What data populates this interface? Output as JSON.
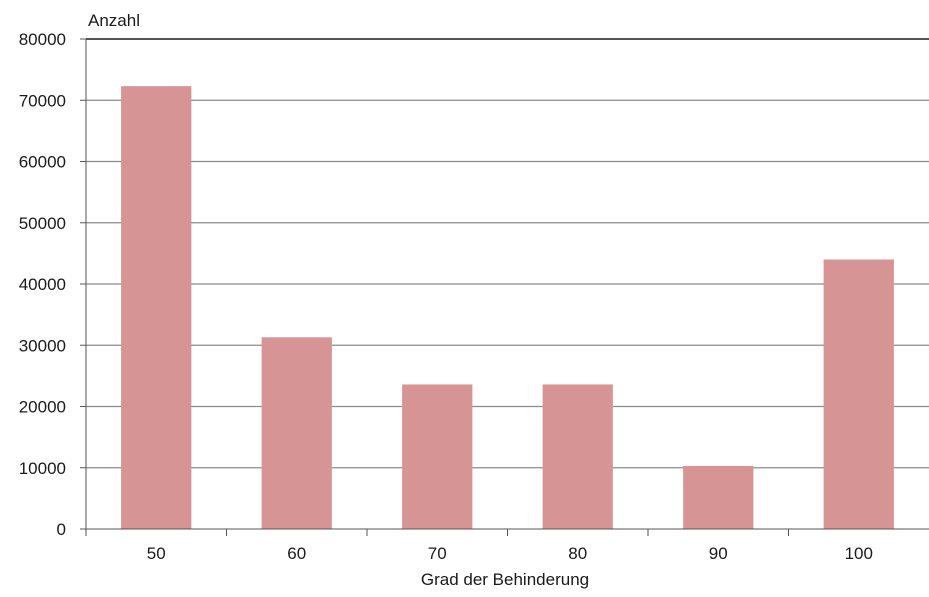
{
  "chart_data": {
    "type": "bar",
    "categories": [
      "50",
      "60",
      "70",
      "80",
      "90",
      "100"
    ],
    "values": [
      72300,
      31300,
      23600,
      23600,
      10300,
      44000
    ],
    "ylabel": "Anzahl",
    "xlabel": "Grad der Behinderung",
    "ylim": [
      0,
      80000
    ],
    "y_ticks": [
      0,
      10000,
      20000,
      30000,
      40000,
      50000,
      60000,
      70000,
      80000
    ],
    "grid": true,
    "bar_color": "#d69494",
    "grid_color": "#8c8c8c",
    "top_border_color": "#1a1a1a"
  }
}
